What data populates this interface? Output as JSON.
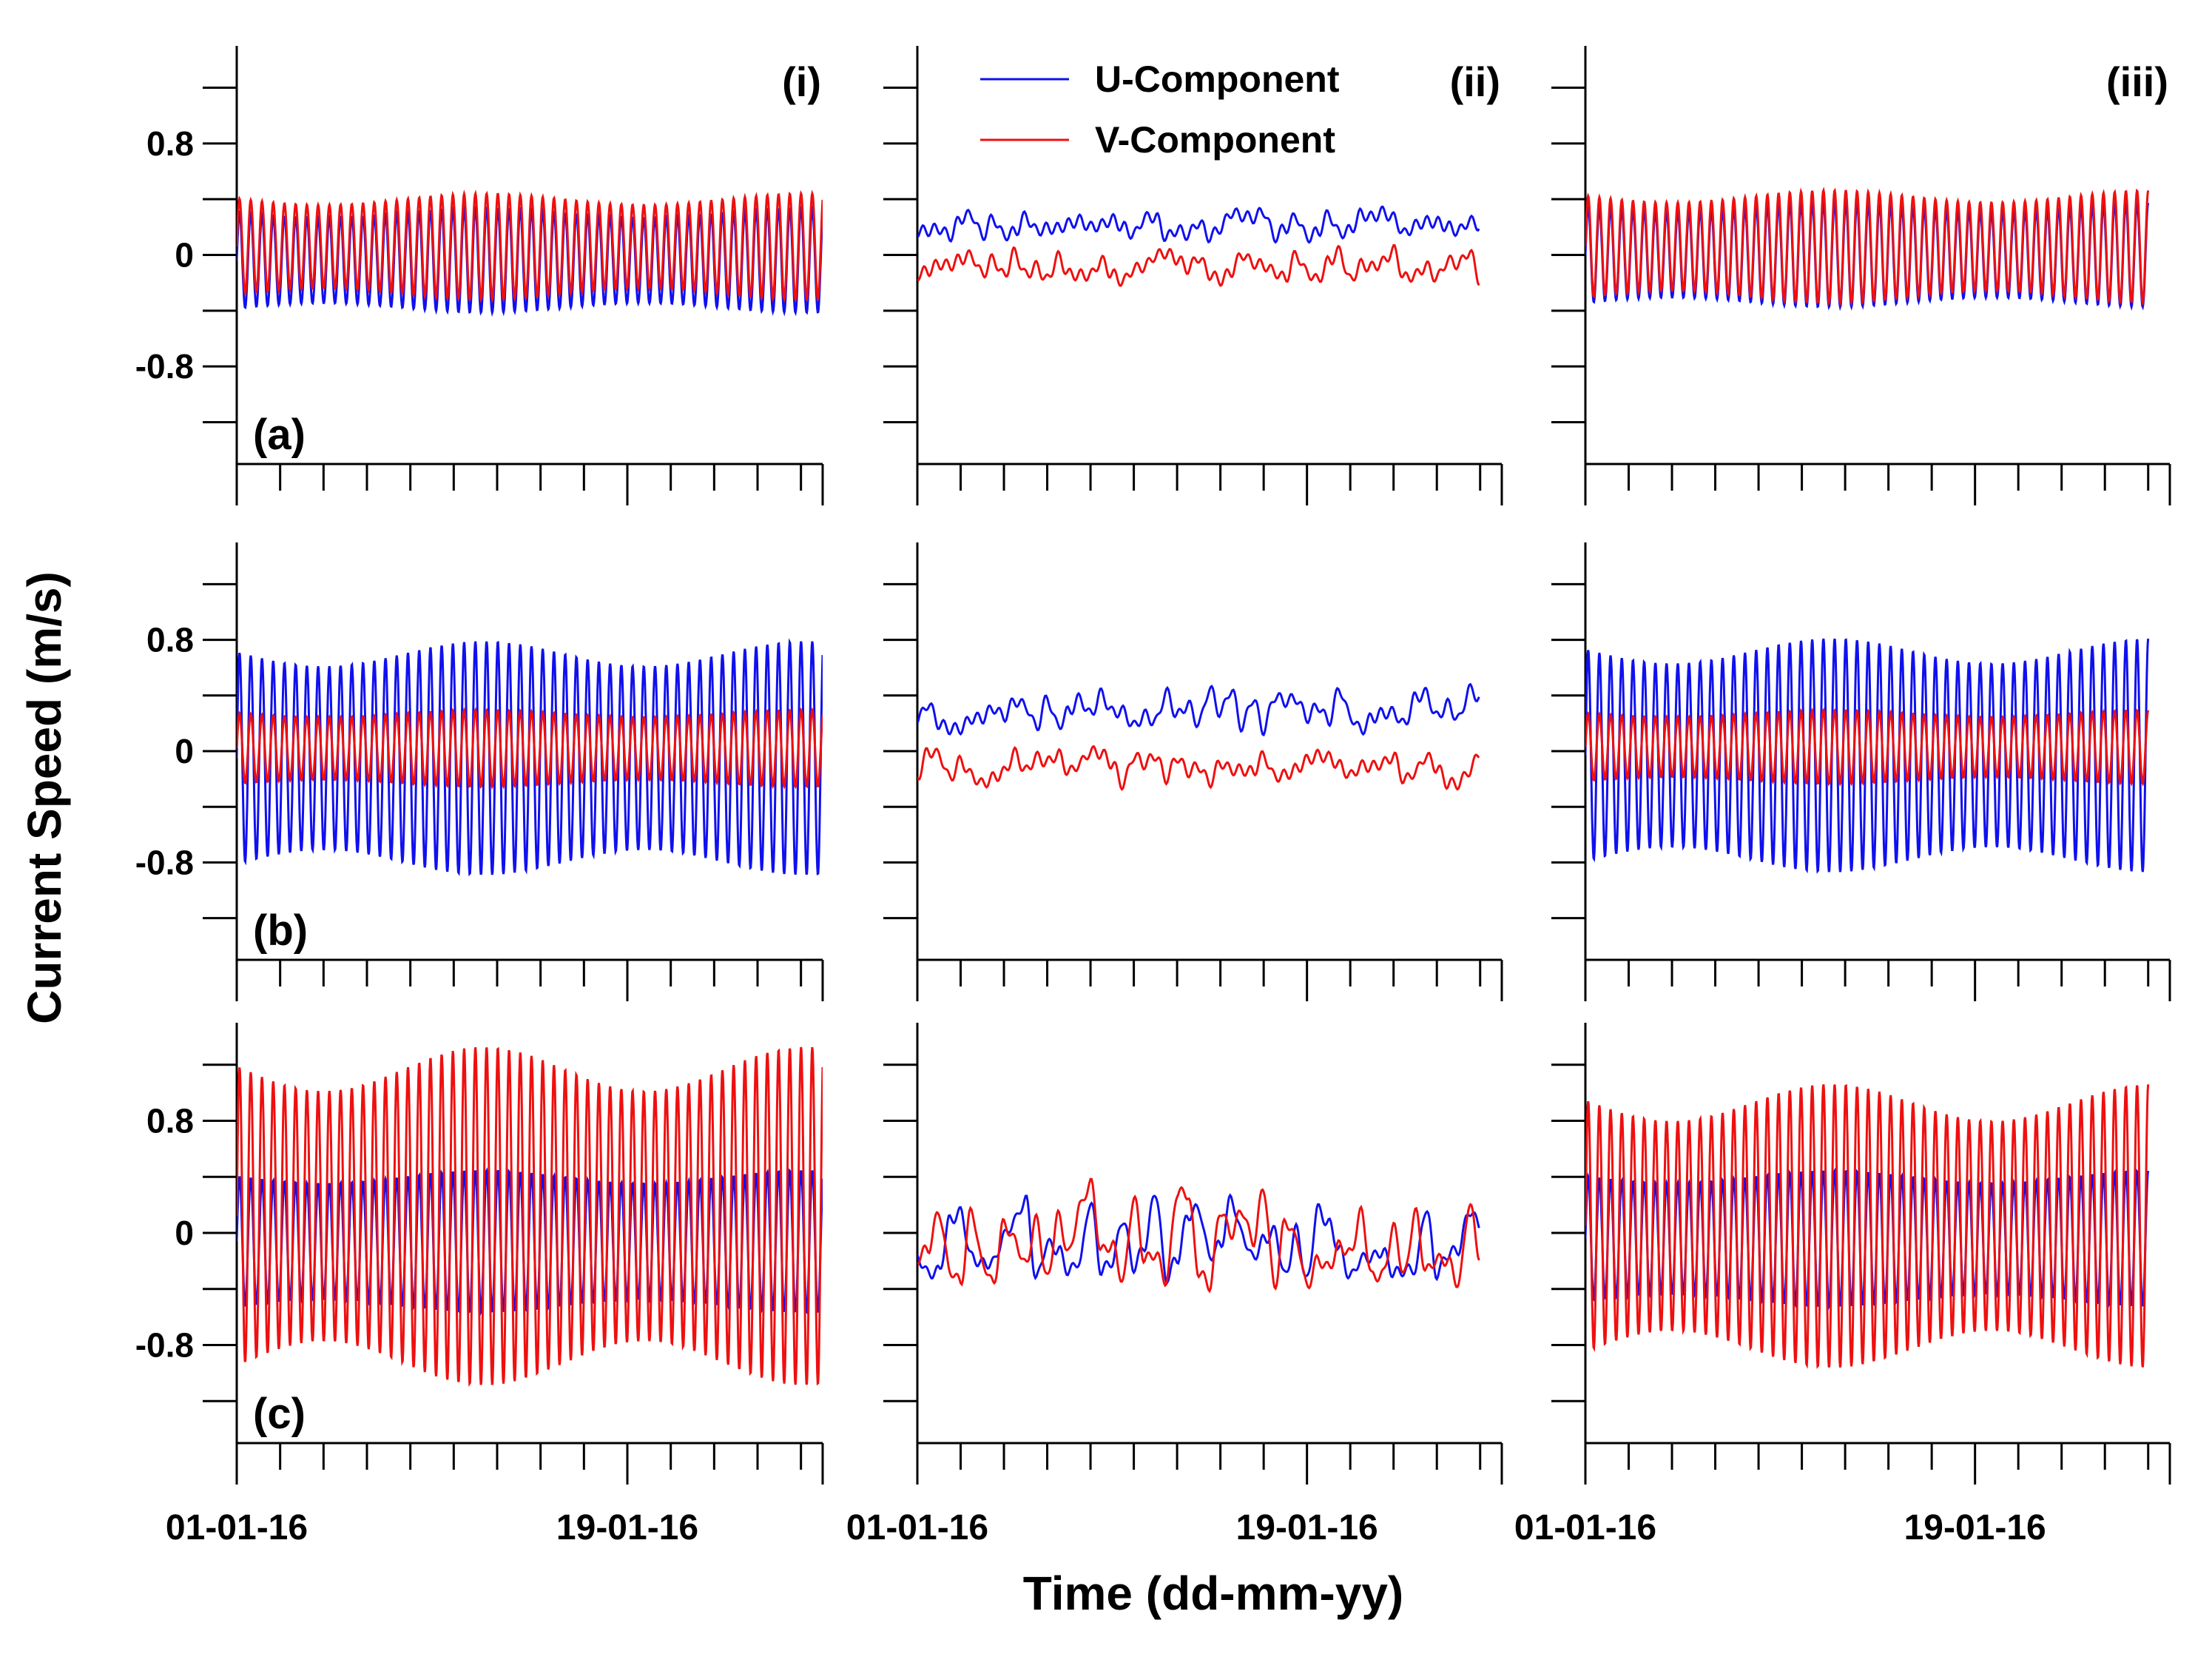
{
  "chart_data": {
    "type": "line",
    "y_axis_title": "Current Speed (m/s)",
    "x_axis_title": "Time (dd-mm-yy)",
    "x_range_days": [
      0,
      27
    ],
    "x_tick_labels": [
      {
        "day": 0,
        "label": "01-01-16"
      },
      {
        "day": 18,
        "label": "19-01-16"
      }
    ],
    "x_minor_tick_step_days": 2,
    "ylim": [
      -1.5,
      1.5
    ],
    "y_ticks": [
      -1.2,
      -0.8,
      -0.4,
      0,
      0.4,
      0.8,
      1.2
    ],
    "y_tick_labels": [
      {
        "value": 0.8,
        "label": "0.8"
      },
      {
        "value": 0,
        "label": "0"
      },
      {
        "value": -0.8,
        "label": "-0.8"
      }
    ],
    "series_names": [
      "U-Component",
      "V-Component"
    ],
    "series_colors": {
      "U-Component": "#1010ee",
      "V-Component": "#ee1010"
    },
    "column_labels": [
      "(i)",
      "(ii)",
      "(iii)"
    ],
    "row_labels": [
      "(a)",
      "(b)",
      "(c)"
    ],
    "panels": [
      {
        "row": "(a)",
        "col": "(i)",
        "type": "tidal",
        "end_day": 27,
        "U": {
          "mean": -0.04,
          "amp": 0.34,
          "spring_neap": 0.1
        },
        "V": {
          "mean": 0.06,
          "amp": 0.34,
          "spring_neap": 0.12
        }
      },
      {
        "row": "(a)",
        "col": "(ii)",
        "type": "residual",
        "end_day": 26,
        "U": {
          "level": 0.22,
          "noise": 0.1,
          "seed": 11
        },
        "V": {
          "level": -0.08,
          "noise": 0.12,
          "seed": 23
        }
      },
      {
        "row": "(a)",
        "col": "(iii)",
        "type": "tidal",
        "end_day": 26,
        "U": {
          "mean": 0.0,
          "amp": 0.34,
          "spring_neap": 0.1
        },
        "V": {
          "mean": 0.06,
          "amp": 0.36,
          "spring_neap": 0.12
        }
      },
      {
        "row": "(b)",
        "col": "(i)",
        "type": "tidal",
        "end_day": 27,
        "U": {
          "mean": -0.05,
          "amp": 0.75,
          "spring_neap": 0.12
        },
        "V": {
          "mean": 0.02,
          "amp": 0.25,
          "spring_neap": 0.1
        }
      },
      {
        "row": "(b)",
        "col": "(ii)",
        "type": "residual",
        "end_day": 26,
        "U": {
          "level": 0.3,
          "noise": 0.15,
          "seed": 37
        },
        "V": {
          "level": -0.12,
          "noise": 0.12,
          "seed": 41
        }
      },
      {
        "row": "(b)",
        "col": "(iii)",
        "type": "tidal",
        "end_day": 26,
        "U": {
          "mean": -0.03,
          "amp": 0.75,
          "spring_neap": 0.12
        },
        "V": {
          "mean": 0.03,
          "amp": 0.24,
          "spring_neap": 0.1
        }
      },
      {
        "row": "(c)",
        "col": "(i)",
        "type": "tidal",
        "end_day": 27,
        "U": {
          "mean": -0.06,
          "amp": 0.46,
          "spring_neap": 0.1
        },
        "V": {
          "mean": 0.12,
          "amp": 1.05,
          "spring_neap": 0.15
        }
      },
      {
        "row": "(c)",
        "col": "(ii)",
        "type": "residual",
        "end_day": 26,
        "U": {
          "level": 0.0,
          "noise": 0.35,
          "seed": 53
        },
        "V": {
          "level": 0.0,
          "noise": 0.38,
          "seed": 67
        }
      },
      {
        "row": "(c)",
        "col": "(iii)",
        "type": "tidal",
        "end_day": 26,
        "U": {
          "mean": -0.04,
          "amp": 0.44,
          "spring_neap": 0.1
        },
        "V": {
          "mean": 0.05,
          "amp": 0.88,
          "spring_neap": 0.15
        }
      }
    ]
  }
}
